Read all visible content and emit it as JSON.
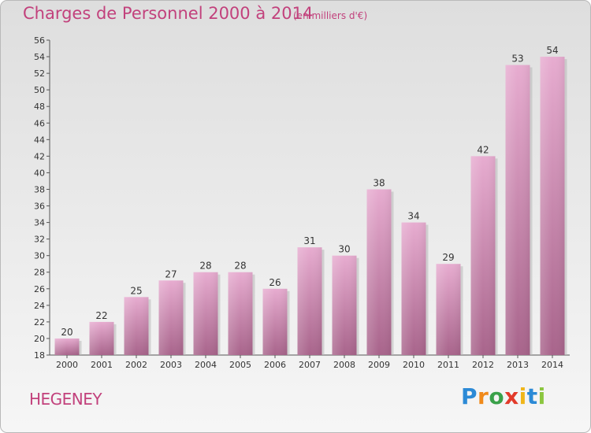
{
  "title": "Charges de Personnel 2000 à 2014",
  "subtitle": "(en milliers d'€)",
  "commune": "HEGENEY",
  "logo": {
    "letters": [
      "P",
      "r",
      "o",
      "x",
      "i",
      "t",
      "i"
    ],
    "colors": [
      "#2c8ad6",
      "#f08a1a",
      "#3aa14a",
      "#e23a2a",
      "#f0b61a",
      "#2c8ad6",
      "#8bc63f"
    ]
  },
  "colors": {
    "accent": "#c2417c",
    "bar_light": "#e7acd0",
    "bar_dark": "#a8648b",
    "bar_shadow": "#b8b8b8"
  },
  "chart_data": {
    "type": "bar",
    "categories": [
      "2000",
      "2001",
      "2002",
      "2003",
      "2004",
      "2005",
      "2006",
      "2007",
      "2008",
      "2009",
      "2010",
      "2011",
      "2012",
      "2013",
      "2014"
    ],
    "values": [
      20,
      22,
      25,
      27,
      28,
      28,
      26,
      31,
      30,
      38,
      34,
      29,
      42,
      53,
      54
    ],
    "title": "Charges de Personnel 2000 à 2014",
    "xlabel": "",
    "ylabel": "",
    "ylim": [
      18,
      56
    ],
    "yticks": [
      18,
      20,
      22,
      24,
      26,
      28,
      30,
      32,
      34,
      36,
      38,
      40,
      42,
      44,
      46,
      48,
      50,
      52,
      54,
      56
    ],
    "grid": false,
    "legend": "none"
  }
}
